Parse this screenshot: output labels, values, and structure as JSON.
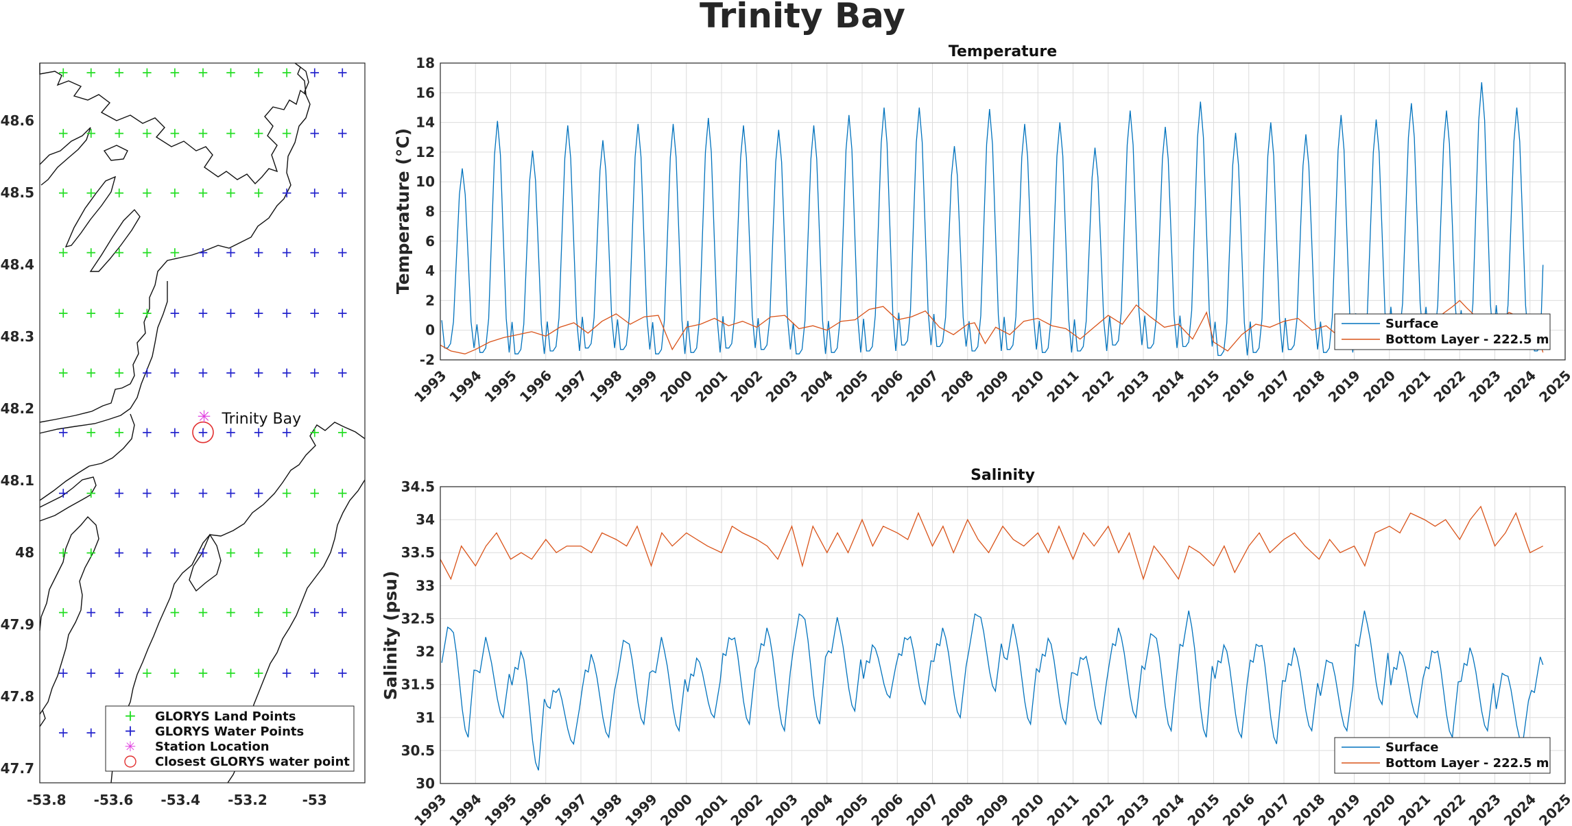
{
  "figure": {
    "title": "Trinity Bay",
    "colors": {
      "surface": "#0072BD",
      "bottom": "#D95319",
      "land_points": "#22dd22",
      "water_points": "#2222cc",
      "station": "#e040e0",
      "closest": "#e23030"
    }
  },
  "map": {
    "xlim": [
      -53.82,
      -52.85
    ],
    "ylim": [
      47.68,
      48.68
    ],
    "xticks": [
      -53.8,
      -53.6,
      -53.4,
      -53.2,
      -53.0
    ],
    "xtick_labels": [
      "-53.8",
      "-53.6",
      "-53.4",
      "-53.2",
      "-53"
    ],
    "yticks": [
      47.7,
      47.8,
      47.9,
      48.0,
      48.1,
      48.2,
      48.3,
      48.4,
      48.5,
      48.6
    ],
    "ytick_labels": [
      "47.7",
      "47.8",
      "47.9",
      "48",
      "48.1",
      "48.2",
      "48.3",
      "48.4",
      "48.5",
      "48.6"
    ],
    "grid_lons": [
      -53.75,
      -53.667,
      -53.583,
      -53.5,
      -53.417,
      -53.333,
      -53.25,
      -53.167,
      -53.083,
      -53.0,
      -52.917
    ],
    "grid_lats": [
      47.75,
      47.833,
      47.917,
      48.0,
      48.083,
      48.167,
      48.25,
      48.333,
      48.417,
      48.5,
      48.583,
      48.667
    ],
    "station": {
      "lon": -53.33,
      "lat": 48.177,
      "label": "Trinity Bay"
    },
    "closest_point": {
      "lon": -53.333,
      "lat": 48.167
    },
    "legend": {
      "land": "GLORYS Land Points",
      "water": "GLORYS Water Points",
      "station": "Station Location",
      "closest": "Closest GLORYS water point"
    },
    "legend_position": "bottom-right"
  },
  "chart_data": [
    {
      "type": "line",
      "title": "Temperature",
      "ylabel": "Temperature (°C)",
      "xlim": [
        1993,
        2025
      ],
      "ylim": [
        -2,
        18
      ],
      "yticks": [
        -2,
        0,
        2,
        4,
        6,
        8,
        10,
        12,
        14,
        16,
        18
      ],
      "xticks": [
        1993,
        1994,
        1995,
        1996,
        1997,
        1998,
        1999,
        2000,
        2001,
        2002,
        2003,
        2004,
        2005,
        2006,
        2007,
        2008,
        2009,
        2010,
        2011,
        2012,
        2013,
        2014,
        2015,
        2016,
        2017,
        2018,
        2019,
        2020,
        2021,
        2022,
        2023,
        2024,
        2025
      ],
      "grid": true,
      "legend_position": "bottom-right",
      "x_end": 2024.37,
      "series": [
        {
          "name": "Surface",
          "years": [
            1993,
            1994,
            1995,
            1996,
            1997,
            1998,
            1999,
            2000,
            2001,
            2002,
            2003,
            2004,
            2005,
            2006,
            2007,
            2008,
            2009,
            2010,
            2011,
            2012,
            2013,
            2014,
            2015,
            2016,
            2017,
            2018,
            2019,
            2020,
            2021,
            2022,
            2023,
            2024
          ],
          "summer_max": [
            10.9,
            14.1,
            12.1,
            13.8,
            12.8,
            13.9,
            13.9,
            14.3,
            13.8,
            13.5,
            13.8,
            14.5,
            15.0,
            15.0,
            12.4,
            14.9,
            13.9,
            14.0,
            12.3,
            14.8,
            13.7,
            15.4,
            13.3,
            14.0,
            13.2,
            14.5,
            14.2,
            15.3,
            14.8,
            16.7,
            15.0,
            4.4
          ],
          "winter_min": [
            -1.2,
            -1.5,
            -1.6,
            -1.4,
            -1.2,
            -1.3,
            -1.6,
            -1.5,
            -1.2,
            -1.3,
            -1.6,
            -1.5,
            -1.4,
            -1.0,
            -1.1,
            -1.4,
            -1.3,
            -1.5,
            -1.4,
            -1.0,
            -1.2,
            -1.1,
            -1.7,
            -1.5,
            -1.3,
            -1.5,
            -1.0,
            -0.5,
            -0.6,
            -0.8,
            -0.6,
            -1.4
          ]
        },
        {
          "name": "Bottom Layer - 222.5 m",
          "x": [
            1993.0,
            1993.3,
            1993.7,
            1994.0,
            1994.4,
            1994.8,
            1995.2,
            1995.6,
            1996.0,
            1996.4,
            1996.8,
            1997.2,
            1997.6,
            1998.0,
            1998.4,
            1998.8,
            1999.2,
            1999.6,
            2000.0,
            2000.4,
            2000.8,
            2001.2,
            2001.6,
            2002.0,
            2002.4,
            2002.8,
            2003.2,
            2003.6,
            2004.0,
            2004.4,
            2004.8,
            2005.2,
            2005.6,
            2006.0,
            2006.4,
            2006.8,
            2007.2,
            2007.6,
            2008.0,
            2008.2,
            2008.5,
            2008.8,
            2009.2,
            2009.6,
            2010.0,
            2010.4,
            2010.8,
            2011.2,
            2011.6,
            2012.0,
            2012.4,
            2012.8,
            2013.2,
            2013.6,
            2014.0,
            2014.4,
            2014.8,
            2015.0,
            2015.4,
            2015.8,
            2016.2,
            2016.6,
            2017.0,
            2017.4,
            2017.8,
            2018.2,
            2018.6,
            2019.0,
            2019.4,
            2019.8,
            2020.2,
            2020.6,
            2021.0,
            2021.4,
            2021.8,
            2022.0,
            2022.2,
            2022.6,
            2023.0,
            2023.4,
            2023.8,
            2024.2,
            2024.37
          ],
          "y": [
            -1.0,
            -1.4,
            -1.6,
            -1.3,
            -0.8,
            -0.5,
            -0.3,
            -0.1,
            -0.4,
            0.2,
            0.5,
            -0.2,
            0.6,
            1.1,
            0.4,
            0.9,
            1.0,
            -1.3,
            0.2,
            0.4,
            0.8,
            0.3,
            0.6,
            0.2,
            0.9,
            1.0,
            0.1,
            0.3,
            0.0,
            0.6,
            0.7,
            1.4,
            1.6,
            0.7,
            0.9,
            1.3,
            0.2,
            -0.3,
            0.4,
            0.5,
            -0.9,
            0.2,
            -0.3,
            0.6,
            0.8,
            0.3,
            0.1,
            -0.6,
            0.2,
            1.0,
            0.4,
            1.7,
            0.9,
            0.2,
            0.4,
            -0.6,
            1.2,
            -0.8,
            -1.4,
            -0.3,
            0.4,
            0.2,
            0.6,
            0.8,
            0.0,
            0.3,
            -0.5,
            -1.2,
            0.1,
            -0.4,
            0.5,
            0.7,
            1.1,
            0.9,
            1.6,
            2.0,
            1.5,
            0.6,
            0.2,
            1.2,
            0.8,
            -0.2,
            -1.5
          ]
        }
      ]
    },
    {
      "type": "line",
      "title": "Salinity",
      "ylabel": "Salinity (psu)",
      "xlim": [
        1993,
        2025
      ],
      "ylim": [
        30,
        34.5
      ],
      "yticks": [
        30,
        30.5,
        31,
        31.5,
        32,
        32.5,
        33,
        33.5,
        34,
        34.5
      ],
      "xticks": [
        1993,
        1994,
        1995,
        1996,
        1997,
        1998,
        1999,
        2000,
        2001,
        2002,
        2003,
        2004,
        2005,
        2006,
        2007,
        2008,
        2009,
        2010,
        2011,
        2012,
        2013,
        2014,
        2015,
        2016,
        2017,
        2018,
        2019,
        2020,
        2021,
        2022,
        2023,
        2024,
        2025
      ],
      "grid": true,
      "legend_position": "bottom-right",
      "x_end": 2024.37,
      "series": [
        {
          "name": "Surface",
          "years": [
            1993,
            1994,
            1995,
            1996,
            1997,
            1998,
            1999,
            2000,
            2001,
            2002,
            2003,
            2004,
            2005,
            2006,
            2007,
            2008,
            2009,
            2010,
            2011,
            2012,
            2013,
            2014,
            2015,
            2016,
            2017,
            2018,
            2019,
            2020,
            2021,
            2022,
            2023,
            2024
          ],
          "spring_max": [
            32.4,
            32.1,
            32.0,
            31.5,
            31.9,
            32.2,
            32.1,
            31.9,
            32.3,
            32.3,
            32.6,
            32.4,
            32.1,
            32.3,
            32.3,
            32.6,
            32.3,
            32.2,
            32.0,
            32.3,
            32.3,
            32.5,
            32.1,
            32.2,
            32.0,
            31.9,
            32.5,
            32.0,
            32.1,
            32.0,
            31.7,
            31.8
          ],
          "autumn_min": [
            30.7,
            31.0,
            30.2,
            30.6,
            30.7,
            30.9,
            30.8,
            31.0,
            30.9,
            30.8,
            30.9,
            31.1,
            31.3,
            31.2,
            31.0,
            31.4,
            30.9,
            30.9,
            30.9,
            31.0,
            30.8,
            30.7,
            30.7,
            30.6,
            30.8,
            30.8,
            31.2,
            31.0,
            30.7,
            30.8,
            30.6,
            30.6
          ]
        },
        {
          "name": "Bottom Layer - 222.5 m",
          "x": [
            1993.0,
            1993.3,
            1993.6,
            1994.0,
            1994.3,
            1994.6,
            1995.0,
            1995.3,
            1995.6,
            1996.0,
            1996.3,
            1996.6,
            1997.0,
            1997.3,
            1997.6,
            1998.0,
            1998.3,
            1998.6,
            1999.0,
            1999.3,
            1999.6,
            2000.0,
            2000.3,
            2000.6,
            2001.0,
            2001.3,
            2001.6,
            2002.0,
            2002.3,
            2002.6,
            2003.0,
            2003.3,
            2003.6,
            2004.0,
            2004.3,
            2004.6,
            2005.0,
            2005.3,
            2005.6,
            2006.0,
            2006.3,
            2006.6,
            2007.0,
            2007.3,
            2007.6,
            2008.0,
            2008.3,
            2008.6,
            2009.0,
            2009.3,
            2009.6,
            2010.0,
            2010.3,
            2010.6,
            2011.0,
            2011.3,
            2011.6,
            2012.0,
            2012.3,
            2012.6,
            2013.0,
            2013.3,
            2013.6,
            2014.0,
            2014.3,
            2014.6,
            2015.0,
            2015.3,
            2015.6,
            2016.0,
            2016.3,
            2016.6,
            2017.0,
            2017.3,
            2017.6,
            2018.0,
            2018.3,
            2018.6,
            2019.0,
            2019.3,
            2019.6,
            2020.0,
            2020.3,
            2020.6,
            2021.0,
            2021.3,
            2021.6,
            2022.0,
            2022.3,
            2022.6,
            2023.0,
            2023.3,
            2023.6,
            2024.0,
            2024.37
          ],
          "y": [
            33.4,
            33.1,
            33.6,
            33.3,
            33.6,
            33.8,
            33.4,
            33.5,
            33.4,
            33.7,
            33.5,
            33.6,
            33.6,
            33.5,
            33.8,
            33.7,
            33.6,
            33.9,
            33.3,
            33.8,
            33.6,
            33.8,
            33.7,
            33.6,
            33.5,
            33.9,
            33.8,
            33.7,
            33.6,
            33.4,
            33.9,
            33.3,
            33.9,
            33.5,
            33.8,
            33.5,
            34.0,
            33.6,
            33.9,
            33.8,
            33.7,
            34.1,
            33.6,
            33.9,
            33.5,
            34.0,
            33.7,
            33.5,
            33.9,
            33.7,
            33.6,
            33.8,
            33.5,
            33.9,
            33.4,
            33.8,
            33.6,
            33.9,
            33.5,
            33.8,
            33.1,
            33.6,
            33.4,
            33.1,
            33.6,
            33.5,
            33.3,
            33.6,
            33.2,
            33.6,
            33.8,
            33.5,
            33.7,
            33.8,
            33.6,
            33.4,
            33.7,
            33.5,
            33.6,
            33.3,
            33.8,
            33.9,
            33.8,
            34.1,
            34.0,
            33.9,
            34.0,
            33.7,
            34.0,
            34.2,
            33.6,
            33.8,
            34.1,
            33.5,
            33.6
          ]
        }
      ]
    }
  ]
}
